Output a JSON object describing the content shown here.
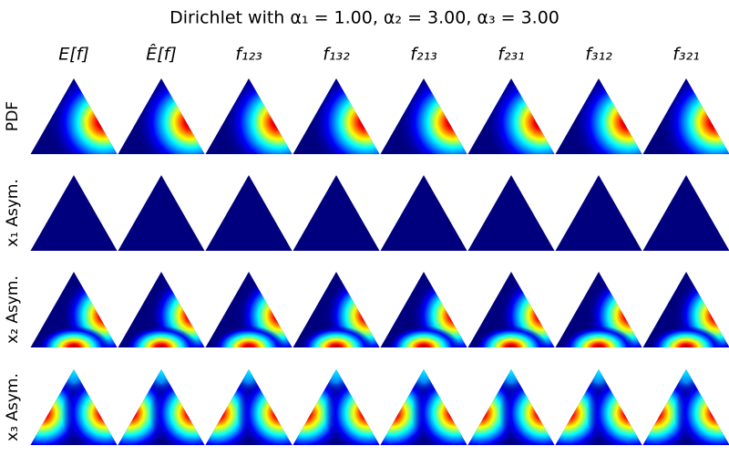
{
  "title": "Dirichlet with α₁ = 1.00, α₂ = 3.00, α₃ = 3.00",
  "columns": [
    "E[f]",
    "Ê[f]",
    "f₁₂₃",
    "f₁₃₂",
    "f₂₁₃",
    "f₂₃₁",
    "f₃₁₂",
    "f₃₂₁"
  ],
  "rows": [
    "PDF",
    "x₁ Asym.",
    "x₂ Asym.",
    "x₃ Asym."
  ]
}
